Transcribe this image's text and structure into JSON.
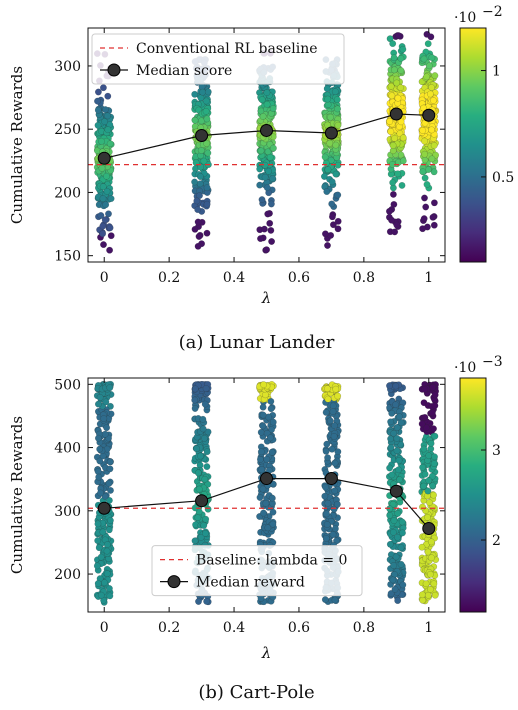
{
  "chart_data": [
    {
      "type": "scatter",
      "caption": "(a) Lunar Lander",
      "xlabel": "λ",
      "ylabel": "Cumulative Rewards",
      "xlim": [
        -0.05,
        1.05
      ],
      "ylim": [
        145,
        330
      ],
      "xticks": [
        "0",
        "0.2",
        "0.4",
        "0.6",
        "0.8",
        "1"
      ],
      "xtick_values": [
        0,
        0.2,
        0.4,
        0.6,
        0.8,
        1
      ],
      "yticks": [
        "150",
        "200",
        "250",
        "300"
      ],
      "ytick_values": [
        150,
        200,
        250,
        300
      ],
      "lambdas": [
        0,
        0.3,
        0.5,
        0.7,
        0.9,
        1
      ],
      "spread_min": [
        150,
        153,
        152,
        158,
        162,
        170
      ],
      "spread_max": [
        310,
        305,
        310,
        305,
        325,
        325
      ],
      "median_series": {
        "name": "Median score",
        "x": [
          0,
          0.3,
          0.5,
          0.7,
          0.9,
          1
        ],
        "y": [
          227,
          245,
          249,
          247,
          262,
          261
        ]
      },
      "baseline": {
        "name": "Conventional RL baseline",
        "y": 222
      },
      "colorbar": {
        "ticks": [
          "0.5",
          "1"
        ],
        "tick_values": [
          0.5,
          1
        ],
        "multiplier": "·10",
        "exponent": "−2",
        "range": [
          0.1,
          1.2
        ]
      },
      "legend_position": "top-left"
    },
    {
      "type": "scatter",
      "caption": "(b) Cart-Pole",
      "xlabel": "λ",
      "ylabel": "Cumulative Rewards",
      "xlim": [
        -0.05,
        1.05
      ],
      "ylim": [
        140,
        510
      ],
      "xticks": [
        "0",
        "0.2",
        "0.4",
        "0.6",
        "0.8",
        "1"
      ],
      "xtick_values": [
        0,
        0.2,
        0.4,
        0.6,
        0.8,
        1
      ],
      "yticks": [
        "200",
        "300",
        "400",
        "500"
      ],
      "ytick_values": [
        200,
        300,
        400,
        500
      ],
      "lambdas": [
        0,
        0.3,
        0.5,
        0.7,
        0.9,
        1
      ],
      "spread_min": [
        155,
        155,
        155,
        155,
        158,
        155
      ],
      "spread_max": [
        500,
        500,
        500,
        500,
        500,
        500
      ],
      "median_series": {
        "name": "Median reward",
        "x": [
          0,
          0.3,
          0.5,
          0.7,
          0.9,
          1
        ],
        "y": [
          304,
          316,
          351,
          351,
          331,
          272
        ]
      },
      "baseline": {
        "name": "Baseline: lambda = 0",
        "y": 304
      },
      "colorbar": {
        "ticks": [
          "2",
          "3"
        ],
        "tick_values": [
          2,
          3
        ],
        "multiplier": "·10",
        "exponent": "−3",
        "range": [
          1.2,
          3.8
        ]
      },
      "legend_position": "bottom-center"
    }
  ],
  "colors": {
    "baseline": "#e03030",
    "median_marker": "#333333",
    "viridis": [
      "#440154",
      "#472d7b",
      "#3b528b",
      "#2c728e",
      "#21918c",
      "#28ae80",
      "#5ec962",
      "#addc30",
      "#fde725"
    ]
  }
}
